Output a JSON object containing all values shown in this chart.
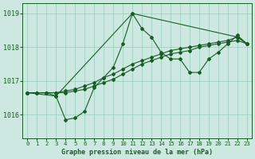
{
  "title": "Graphe pression niveau de la mer (hPa)",
  "background_color": "#cce8e0",
  "grid_color": "#99ccbb",
  "line_color": "#1a5c28",
  "xlim": [
    -0.5,
    23.5
  ],
  "ylim": [
    1015.3,
    1019.3
  ],
  "yticks": [
    1016,
    1017,
    1018,
    1019
  ],
  "xticks": [
    0,
    1,
    2,
    3,
    4,
    5,
    6,
    7,
    8,
    9,
    10,
    11,
    12,
    13,
    14,
    15,
    16,
    17,
    18,
    19,
    20,
    21,
    22,
    23
  ],
  "series": [
    {
      "x": [
        0,
        1,
        2,
        3,
        4,
        5,
        6,
        7,
        8,
        9,
        10,
        11,
        12,
        13,
        14,
        15,
        16,
        17,
        18,
        19,
        20,
        21,
        22,
        23
      ],
      "y": [
        1016.65,
        1016.65,
        1016.65,
        1016.55,
        1015.85,
        1015.9,
        1016.1,
        1016.8,
        1017.1,
        1017.4,
        1018.1,
        1019.0,
        1018.55,
        1018.3,
        1017.85,
        1017.65,
        1017.65,
        1017.25,
        1017.25,
        1017.65,
        1017.85,
        1018.1,
        1018.35,
        1018.1
      ],
      "marker": "D"
    },
    {
      "x": [
        0,
        1,
        2,
        3,
        4,
        5,
        6,
        7,
        8,
        9,
        10,
        11,
        12,
        13,
        14,
        15,
        16,
        17,
        18,
        19,
        20,
        21,
        22,
        23
      ],
      "y": [
        1016.65,
        1016.65,
        1016.65,
        1016.65,
        1016.65,
        1016.7,
        1016.75,
        1016.85,
        1016.95,
        1017.05,
        1017.2,
        1017.35,
        1017.5,
        1017.6,
        1017.7,
        1017.8,
        1017.85,
        1017.9,
        1018.0,
        1018.05,
        1018.1,
        1018.15,
        1018.2,
        1018.1
      ],
      "marker": "D"
    },
    {
      "x": [
        0,
        1,
        2,
        3,
        4,
        5,
        6,
        7,
        8,
        9,
        10,
        11,
        12,
        13,
        14,
        15,
        16,
        17,
        18,
        19,
        20,
        21,
        22,
        23
      ],
      "y": [
        1016.65,
        1016.65,
        1016.65,
        1016.65,
        1016.7,
        1016.75,
        1016.85,
        1016.95,
        1017.1,
        1017.2,
        1017.35,
        1017.5,
        1017.6,
        1017.7,
        1017.8,
        1017.9,
        1017.95,
        1018.0,
        1018.05,
        1018.1,
        1018.15,
        1018.2,
        1018.3,
        1018.1
      ],
      "marker": "D"
    },
    {
      "x": [
        0,
        3,
        11,
        22,
        23
      ],
      "y": [
        1016.65,
        1016.55,
        1019.0,
        1018.3,
        1018.1
      ],
      "marker": "D"
    }
  ]
}
